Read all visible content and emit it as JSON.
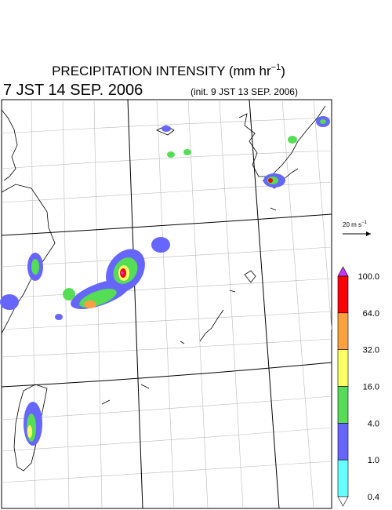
{
  "header": {
    "title": "PRECIPITATION INTENSITY (mm hr",
    "title_superscript": "−1",
    "title_close": ")",
    "valid_time": "7 JST 14 SEP. 2006",
    "init_time": "(init. 9 JST 13 SEP. 2006)"
  },
  "wind_scale": {
    "label": "20 m s",
    "superscript": "−1"
  },
  "legend": {
    "labels": [
      "100.0",
      "64.0",
      "32.0",
      "16.0",
      "4.0",
      "1.0",
      "0.4"
    ],
    "colors": [
      "#cc33ff",
      "#ff0000",
      "#ffa040",
      "#ffff66",
      "#55dd55",
      "#6666ff",
      "#66ffff",
      "#ffffff"
    ]
  }
}
